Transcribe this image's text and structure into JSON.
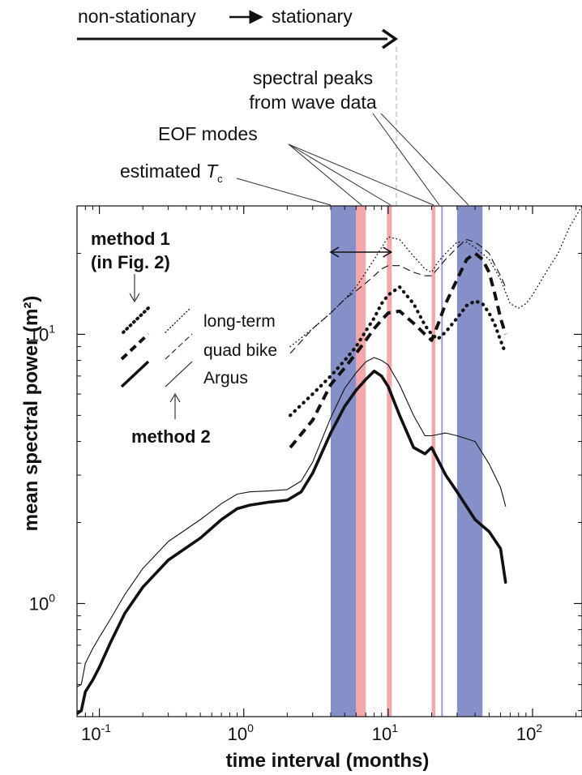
{
  "chart_data": {
    "type": "line",
    "xlabel": "time interval (months)",
    "ylabel": "mean spectral power (m²)",
    "x_scale": "log",
    "y_scale": "log",
    "xlim": [
      0.07,
      220
    ],
    "ylim": [
      0.38,
      30
    ],
    "x_ticks": [
      {
        "value": 0.1,
        "base": "10",
        "exp": "-1"
      },
      {
        "value": 1,
        "base": "10",
        "exp": "0"
      },
      {
        "value": 10,
        "base": "10",
        "exp": "1"
      },
      {
        "value": 100,
        "base": "10",
        "exp": "2"
      }
    ],
    "y_ticks": [
      {
        "value": 1,
        "base": "10",
        "exp": "0"
      },
      {
        "value": 10,
        "base": "10",
        "exp": "1"
      }
    ],
    "annotations": {
      "arrow_left": "non-stationary",
      "arrow_right": "stationary",
      "peaks": [
        "spectral peaks",
        "from wave data"
      ],
      "eof": "EOF modes",
      "tc_text": "estimated ",
      "tc_T": "T",
      "tc_sub": "c",
      "method1": [
        "method 1",
        "(in Fig. 2)"
      ],
      "method2": "method 2",
      "legend": [
        "long-term",
        "quad bike",
        "Argus"
      ]
    },
    "bands": [
      {
        "x0": 4.0,
        "x1": 6.0,
        "kind": "blue"
      },
      {
        "x0": 6.0,
        "x1": 7.0,
        "kind": "red"
      },
      {
        "x0": 9.8,
        "x1": 10.6,
        "kind": "red"
      },
      {
        "x0": 20.0,
        "x1": 21.2,
        "kind": "red"
      },
      {
        "x0": 23.3,
        "x1": 23.9,
        "kind": "blue-thin"
      },
      {
        "x0": 30.0,
        "x1": 45.0,
        "kind": "blue"
      }
    ],
    "tc_range": [
      4.0,
      10.5
    ],
    "colors": {
      "blue_band": "#7b87c4",
      "red_band": "#f3a3a8",
      "thin_blue": "#8a97d4",
      "line": "#111111"
    },
    "series": [
      {
        "name": "long-term",
        "method": "method 1",
        "style": "dotted-thick",
        "x": [
          2.1,
          3,
          4,
          5,
          6,
          7,
          8,
          9,
          10,
          12,
          15,
          18,
          20,
          22,
          25,
          30,
          35,
          40,
          45,
          50,
          55,
          60,
          65
        ],
        "y": [
          5.0,
          6.0,
          7.0,
          8.0,
          9.0,
          10.3,
          11.5,
          13.0,
          14.0,
          15.0,
          13.0,
          10.8,
          10.0,
          9.6,
          10.2,
          11.5,
          12.8,
          13.3,
          13.0,
          12.0,
          10.8,
          9.5,
          8.5
        ]
      },
      {
        "name": "quad bike",
        "method": "method 1",
        "style": "dashed-thick",
        "x": [
          2.1,
          3,
          4,
          5,
          6,
          7,
          8,
          9,
          10,
          12,
          15,
          18,
          20,
          22,
          25,
          30,
          35,
          40,
          45,
          50,
          55,
          60,
          65
        ],
        "y": [
          3.8,
          4.8,
          6.5,
          7.5,
          8.5,
          9.5,
          10.5,
          11.3,
          12.0,
          12.2,
          11.0,
          10.0,
          9.5,
          10.8,
          13.0,
          16.0,
          19.0,
          20.0,
          19.0,
          17.0,
          14.0,
          11.5,
          10.0
        ]
      },
      {
        "name": "Argus",
        "method": "method 1",
        "style": "solid-thick",
        "x": [
          0.07,
          0.075,
          0.08,
          0.09,
          0.1,
          0.12,
          0.15,
          0.2,
          0.3,
          0.5,
          0.7,
          0.9,
          1.1,
          1.5,
          2.0,
          2.5,
          3,
          4,
          5,
          6,
          7,
          8,
          9,
          10,
          12,
          15,
          18,
          20,
          25,
          30,
          40,
          50,
          60,
          65
        ],
        "y": [
          0.39,
          0.4,
          0.47,
          0.52,
          0.58,
          0.72,
          0.92,
          1.15,
          1.45,
          1.75,
          2.05,
          2.25,
          2.32,
          2.38,
          2.42,
          2.6,
          3.05,
          4.3,
          5.4,
          6.2,
          6.8,
          7.3,
          7.0,
          6.4,
          5.0,
          3.8,
          3.6,
          3.8,
          3.0,
          2.6,
          2.05,
          1.85,
          1.6,
          1.2
        ]
      },
      {
        "name": "long-term",
        "method": "method 2",
        "style": "dotted-thin",
        "x": [
          2.1,
          3,
          4,
          5,
          6,
          7,
          8,
          9,
          10,
          12,
          15,
          18,
          20,
          22,
          25,
          30,
          35,
          40,
          50,
          60,
          70,
          80,
          90,
          100,
          120,
          150,
          180,
          220
        ],
        "y": [
          9.0,
          10.5,
          12.0,
          13.5,
          15.0,
          17.0,
          19.0,
          21.0,
          23.0,
          22.5,
          19.5,
          17.5,
          17.0,
          18.5,
          20.0,
          22.0,
          22.0,
          21.0,
          19.0,
          16.0,
          13.0,
          12.5,
          13.0,
          14.0,
          16.5,
          20.0,
          25.0,
          30.0
        ]
      },
      {
        "name": "quad bike",
        "method": "method 2",
        "style": "dashed-thin",
        "x": [
          2.1,
          3,
          4,
          5,
          6,
          7,
          8,
          9,
          10,
          12,
          15,
          18,
          20,
          22,
          25,
          30,
          35,
          40,
          45,
          50,
          55,
          60,
          65
        ],
        "y": [
          8.5,
          10.5,
          12.0,
          13.5,
          14.5,
          15.5,
          16.5,
          17.5,
          18.0,
          18.0,
          17.0,
          16.5,
          16.5,
          17.5,
          19.0,
          21.0,
          22.5,
          22.0,
          21.0,
          20.0,
          18.0,
          16.5,
          15.0
        ]
      },
      {
        "name": "Argus",
        "method": "method 2",
        "style": "solid-thin",
        "x": [
          0.07,
          0.075,
          0.08,
          0.09,
          0.1,
          0.12,
          0.15,
          0.2,
          0.3,
          0.5,
          0.7,
          0.9,
          1.1,
          1.5,
          2.0,
          2.5,
          3,
          4,
          5,
          6,
          7,
          8,
          9,
          10,
          12,
          15,
          18,
          20,
          25,
          30,
          40,
          50,
          60,
          65
        ],
        "y": [
          0.49,
          0.5,
          0.6,
          0.68,
          0.75,
          0.88,
          1.08,
          1.35,
          1.7,
          2.05,
          2.35,
          2.55,
          2.6,
          2.62,
          2.65,
          2.85,
          3.35,
          4.9,
          6.3,
          7.2,
          7.9,
          8.2,
          8.0,
          7.7,
          6.5,
          5.0,
          4.2,
          4.2,
          4.3,
          4.2,
          4.0,
          3.3,
          2.7,
          2.3
        ]
      }
    ]
  }
}
